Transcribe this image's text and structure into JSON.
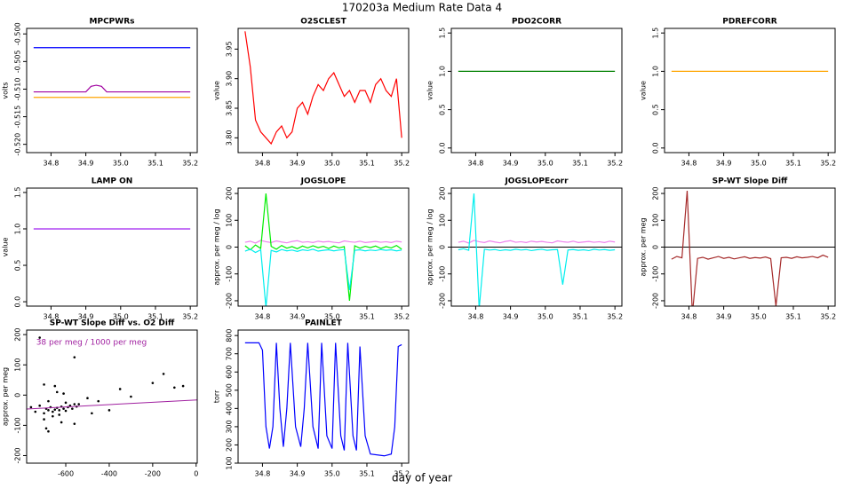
{
  "header": {
    "title": "170203a   Medium Rate Data 4",
    "xlabel": "day of year"
  },
  "chart_data": [
    {
      "type": "line",
      "title": "MPCPWRs",
      "ylabel": "volts",
      "x": [
        34.75,
        34.765,
        34.78,
        34.795,
        34.81,
        34.825,
        34.84,
        34.855,
        34.87,
        34.885,
        34.9,
        34.915,
        34.93,
        34.945,
        34.96,
        34.975,
        34.99,
        35.005,
        35.02,
        35.035,
        35.05,
        35.065,
        35.08,
        35.095,
        35.11,
        35.125,
        35.14,
        35.155,
        35.17,
        35.185,
        35.2
      ],
      "series": [
        {
          "color": "#0000ff",
          "values": [
            -0.5025,
            -0.5025,
            -0.5025,
            -0.5025,
            -0.5025,
            -0.5025,
            -0.5025,
            -0.5025,
            -0.5025,
            -0.5025,
            -0.5025,
            -0.5025,
            -0.5025,
            -0.5025,
            -0.5025,
            -0.5025,
            -0.5025,
            -0.5025,
            -0.5025,
            -0.5025,
            -0.5025,
            -0.5025,
            -0.5025,
            -0.5025,
            -0.5025,
            -0.5025,
            -0.5025,
            -0.5025,
            -0.5025,
            -0.5025,
            -0.5025
          ]
        },
        {
          "color": "#a000a0",
          "values": [
            -0.5105,
            -0.5105,
            -0.5105,
            -0.5105,
            -0.5105,
            -0.5105,
            -0.5105,
            -0.5105,
            -0.5105,
            -0.5105,
            -0.5105,
            -0.5095,
            -0.5093,
            -0.5095,
            -0.5105,
            -0.5105,
            -0.5105,
            -0.5105,
            -0.5105,
            -0.5105,
            -0.5105,
            -0.5105,
            -0.5105,
            -0.5105,
            -0.5105,
            -0.5105,
            -0.5105,
            -0.5105,
            -0.5105,
            -0.5105,
            -0.5105
          ]
        },
        {
          "color": "#ffa500",
          "values": [
            -0.5115,
            -0.5115,
            -0.5115,
            -0.5115,
            -0.5115,
            -0.5115,
            -0.5115,
            -0.5115,
            -0.5115,
            -0.5115,
            -0.5115,
            -0.5115,
            -0.5115,
            -0.5115,
            -0.5115,
            -0.5115,
            -0.5115,
            -0.5115,
            -0.5115,
            -0.5115,
            -0.5115,
            -0.5115,
            -0.5115,
            -0.5115,
            -0.5115,
            -0.5115,
            -0.5115,
            -0.5115,
            -0.5115,
            -0.5115,
            -0.5115
          ]
        }
      ],
      "xlim": [
        34.73,
        35.22
      ],
      "xticks": [
        34.8,
        34.9,
        {
          "value": 35,
          "label": "35.0"
        },
        35.1,
        35.2
      ],
      "ylim": [
        -0.5215,
        -0.499
      ],
      "yticks": [
        {
          "value": -0.52,
          "label": "-0.520"
        },
        -0.515,
        {
          "value": -0.51,
          "label": "-0.510"
        },
        -0.505,
        {
          "value": -0.5,
          "label": "-0.500"
        }
      ]
    },
    {
      "type": "line",
      "title": "O2SCLEST",
      "ylabel": "value",
      "x": [
        34.75,
        34.765,
        34.78,
        34.795,
        34.81,
        34.825,
        34.84,
        34.855,
        34.87,
        34.885,
        34.9,
        34.915,
        34.93,
        34.945,
        34.96,
        34.975,
        34.99,
        35.005,
        35.02,
        35.035,
        35.05,
        35.065,
        35.08,
        35.095,
        35.11,
        35.125,
        35.14,
        35.155,
        35.17,
        35.185,
        35.2
      ],
      "series": [
        {
          "color": "#ff0000",
          "values": [
            3.98,
            3.92,
            3.83,
            3.81,
            3.8,
            3.79,
            3.81,
            3.82,
            3.8,
            3.81,
            3.85,
            3.86,
            3.84,
            3.87,
            3.89,
            3.88,
            3.9,
            3.91,
            3.89,
            3.87,
            3.88,
            3.86,
            3.88,
            3.88,
            3.86,
            3.89,
            3.9,
            3.88,
            3.87,
            3.9,
            3.8
          ]
        }
      ],
      "xlim": [
        34.73,
        35.22
      ],
      "xticks": [
        34.8,
        34.9,
        {
          "value": 35,
          "label": "35.0"
        },
        35.1,
        35.2
      ],
      "ylim": [
        3.775,
        3.985
      ],
      "yticks": [
        {
          "value": 3.8,
          "label": "3.80"
        },
        3.85,
        {
          "value": 3.9,
          "label": "3.90"
        },
        3.95
      ]
    },
    {
      "type": "line",
      "title": "PDO2CORR",
      "ylabel": "value",
      "x": [
        34.75,
        35.2
      ],
      "series": [
        {
          "color": "#008000",
          "values": [
            1,
            1
          ]
        }
      ],
      "xlim": [
        34.73,
        35.22
      ],
      "xticks": [
        34.8,
        34.9,
        {
          "value": 35,
          "label": "35.0"
        },
        35.1,
        35.2
      ],
      "ylim": [
        -0.06,
        1.56
      ],
      "yticks": [
        {
          "value": 0,
          "label": "0.0"
        },
        0.5,
        {
          "value": 1,
          "label": "1.0"
        },
        1.5
      ]
    },
    {
      "type": "line",
      "title": "PDREFCORR",
      "ylabel": "value",
      "x": [
        34.75,
        35.2
      ],
      "series": [
        {
          "color": "#ffa500",
          "values": [
            1,
            1
          ]
        }
      ],
      "xlim": [
        34.73,
        35.22
      ],
      "xticks": [
        34.8,
        34.9,
        {
          "value": 35,
          "label": "35.0"
        },
        35.1,
        35.2
      ],
      "ylim": [
        -0.06,
        1.56
      ],
      "yticks": [
        {
          "value": 0,
          "label": "0.0"
        },
        0.5,
        {
          "value": 1,
          "label": "1.0"
        },
        1.5
      ]
    },
    {
      "type": "line",
      "title": "LAMP ON",
      "ylabel": "value",
      "x": [
        34.75,
        35.2
      ],
      "series": [
        {
          "color": "#a020f0",
          "values": [
            1,
            1
          ]
        }
      ],
      "xlim": [
        34.73,
        35.22
      ],
      "xticks": [
        34.8,
        34.9,
        {
          "value": 35,
          "label": "35.0"
        },
        35.1,
        35.2
      ],
      "ylim": [
        -0.06,
        1.56
      ],
      "yticks": [
        {
          "value": 0,
          "label": "0.0"
        },
        0.5,
        {
          "value": 1,
          "label": "1.0"
        },
        1.5
      ]
    },
    {
      "type": "line",
      "title": "JOGSLOPE",
      "ylabel": "approx. per meg / log",
      "x": [
        34.75,
        34.765,
        34.78,
        34.795,
        34.81,
        34.825,
        34.84,
        34.855,
        34.87,
        34.885,
        34.9,
        34.915,
        34.93,
        34.945,
        34.96,
        34.975,
        34.99,
        35.005,
        35.02,
        35.035,
        35.05,
        35.065,
        35.08,
        35.095,
        35.11,
        35.125,
        35.14,
        35.155,
        35.17,
        35.185,
        35.2
      ],
      "series": [
        {
          "color": "#ee82ee",
          "values": [
            18,
            22,
            15,
            25,
            20,
            17,
            23,
            19,
            16,
            21,
            24,
            18,
            20,
            17,
            22,
            19,
            21,
            18,
            16,
            23,
            20,
            18,
            22,
            17,
            19,
            21,
            18,
            20,
            17,
            22,
            19
          ]
        },
        {
          "color": "#00ee00",
          "values": [
            5,
            -10,
            8,
            -5,
            200,
            3,
            -8,
            6,
            -4,
            2,
            -6,
            4,
            -3,
            5,
            -2,
            3,
            -5,
            4,
            -3,
            2,
            -200,
            5,
            -4,
            3,
            -2,
            4,
            -5,
            2,
            -3,
            6,
            -8
          ]
        },
        {
          "color": "#00eeee",
          "values": [
            -15,
            -8,
            -20,
            -10,
            -225,
            -12,
            -18,
            -9,
            -14,
            -11,
            -16,
            -10,
            -13,
            -8,
            -15,
            -12,
            -10,
            -14,
            -11,
            -9,
            -160,
            -12,
            -10,
            -14,
            -11,
            -13,
            -9,
            -12,
            -10,
            -14,
            -11
          ]
        }
      ],
      "xlim": [
        34.73,
        35.22
      ],
      "xticks": [
        34.8,
        34.9,
        {
          "value": 35,
          "label": "35.0"
        },
        35.1,
        35.2
      ],
      "ylim": [
        -220,
        220
      ],
      "yticks": [
        -200,
        -100,
        0,
        100,
        200
      ]
    },
    {
      "type": "line",
      "title": "JOGSLOPEcorr",
      "ylabel": "approx. per meg / log",
      "hline": 0,
      "x": [
        34.75,
        34.765,
        34.78,
        34.795,
        34.81,
        34.825,
        34.84,
        34.855,
        34.87,
        34.885,
        34.9,
        34.915,
        34.93,
        34.945,
        34.96,
        34.975,
        34.99,
        35.005,
        35.02,
        35.035,
        35.05,
        35.065,
        35.08,
        35.095,
        35.11,
        35.125,
        35.14,
        35.155,
        35.17,
        35.185,
        35.2
      ],
      "series": [
        {
          "color": "#ee82ee",
          "values": [
            18,
            22,
            15,
            25,
            20,
            17,
            23,
            19,
            16,
            21,
            24,
            18,
            20,
            17,
            22,
            19,
            21,
            18,
            16,
            23,
            20,
            18,
            22,
            17,
            19,
            21,
            18,
            20,
            17,
            22,
            19
          ]
        },
        {
          "color": "#00eeee",
          "values": [
            -10,
            -6,
            -12,
            200,
            -230,
            -8,
            -11,
            -9,
            -13,
            -10,
            -12,
            -8,
            -11,
            -9,
            -13,
            -10,
            -8,
            -12,
            -10,
            -9,
            -140,
            -11,
            -9,
            -12,
            -10,
            -13,
            -8,
            -11,
            -9,
            -12,
            -10
          ]
        }
      ],
      "xlim": [
        34.73,
        35.22
      ],
      "xticks": [
        34.8,
        34.9,
        {
          "value": 35,
          "label": "35.0"
        },
        35.1,
        35.2
      ],
      "ylim": [
        -220,
        220
      ],
      "yticks": [
        -200,
        -100,
        0,
        100,
        200
      ]
    },
    {
      "type": "line",
      "title": "SP-WT Slope Diff",
      "ylabel": "approx. per meg",
      "hline": 0,
      "x": [
        34.75,
        34.765,
        34.78,
        34.795,
        34.81,
        34.825,
        34.84,
        34.855,
        34.87,
        34.885,
        34.9,
        34.915,
        34.93,
        34.945,
        34.96,
        34.975,
        34.99,
        35.005,
        35.02,
        35.035,
        35.05,
        35.065,
        35.08,
        35.095,
        35.11,
        35.125,
        35.14,
        35.155,
        35.17,
        35.185,
        35.2
      ],
      "series": [
        {
          "color": "#a52a2a",
          "values": [
            -45,
            -35,
            -40,
            210,
            -250,
            -42,
            -38,
            -45,
            -40,
            -35,
            -42,
            -38,
            -44,
            -40,
            -36,
            -42,
            -39,
            -41,
            -37,
            -43,
            -220,
            -40,
            -38,
            -42,
            -36,
            -40,
            -38,
            -35,
            -40,
            -30,
            -38
          ]
        }
      ],
      "xlim": [
        34.73,
        35.22
      ],
      "xticks": [
        34.8,
        34.9,
        {
          "value": 35,
          "label": "35.0"
        },
        35.1,
        35.2
      ],
      "ylim": [
        -220,
        220
      ],
      "yticks": [
        -200,
        -100,
        0,
        100,
        200
      ]
    },
    {
      "type": "scatter",
      "title": "SP-WT Slope Diff vs. O2 Diff",
      "ylabel": "approx. per meg",
      "annotation": "38 per meg / 1000 per meg",
      "annotation_color": "#a020a0",
      "x": [
        -760,
        -740,
        -720,
        -700,
        -690,
        -680,
        -670,
        -660,
        -650,
        -640,
        -630,
        -620,
        -610,
        -600,
        -590,
        -580,
        -570,
        -560,
        -550,
        -700,
        -680,
        -660,
        -640,
        -620,
        -600,
        -650,
        -630,
        -690,
        -610,
        -560,
        -540,
        -500,
        -480,
        -450,
        -400,
        -350,
        -300,
        -200,
        -150,
        -100,
        -60,
        -720,
        -680,
        -560,
        -700
      ],
      "series": [
        {
          "color": "#000000",
          "values": [
            -40,
            -55,
            -35,
            -60,
            -45,
            -50,
            -40,
            -55,
            -48,
            -42,
            -50,
            -38,
            -45,
            -52,
            -40,
            -35,
            -45,
            -30,
            -38,
            -80,
            -20,
            -70,
            10,
            -90,
            -25,
            30,
            -65,
            -110,
            5,
            125,
            -30,
            -10,
            -60,
            -20,
            -50,
            20,
            -5,
            40,
            70,
            25,
            30,
            190,
            -120,
            -95,
            35
          ]
        }
      ],
      "fit": {
        "color": "#a020a0",
        "x": [
          -780,
          5
        ],
        "values": [
          -46,
          -16
        ]
      },
      "xlim": [
        -780,
        5
      ],
      "xticks": [
        -600,
        -400,
        -200,
        0
      ],
      "ylim": [
        -225,
        215
      ],
      "yticks": [
        -200,
        -100,
        0,
        100,
        200
      ]
    },
    {
      "type": "line",
      "title": "PAINLET",
      "ylabel": "torr",
      "x": [
        34.75,
        34.79,
        34.8,
        34.81,
        34.82,
        34.83,
        34.84,
        34.85,
        34.86,
        34.87,
        34.88,
        34.895,
        34.91,
        34.92,
        34.93,
        34.945,
        34.96,
        34.97,
        34.985,
        35.0,
        35.01,
        35.025,
        35.035,
        35.045,
        35.06,
        35.07,
        35.08,
        35.095,
        35.11,
        35.15,
        35.17,
        35.18,
        35.19,
        35.2
      ],
      "series": [
        {
          "color": "#0000ff",
          "values": [
            760,
            760,
            720,
            300,
            180,
            300,
            760,
            400,
            190,
            400,
            760,
            300,
            190,
            400,
            760,
            300,
            180,
            760,
            250,
            180,
            760,
            250,
            170,
            760,
            250,
            170,
            740,
            250,
            150,
            140,
            150,
            300,
            740,
            750
          ]
        }
      ],
      "xlim": [
        34.73,
        35.22
      ],
      "xticks": [
        34.8,
        34.9,
        {
          "value": 35,
          "label": "35.0"
        },
        35.1,
        35.2
      ],
      "ylim": [
        100,
        830
      ],
      "yticks": [
        100,
        200,
        300,
        400,
        500,
        600,
        700,
        800
      ]
    }
  ]
}
